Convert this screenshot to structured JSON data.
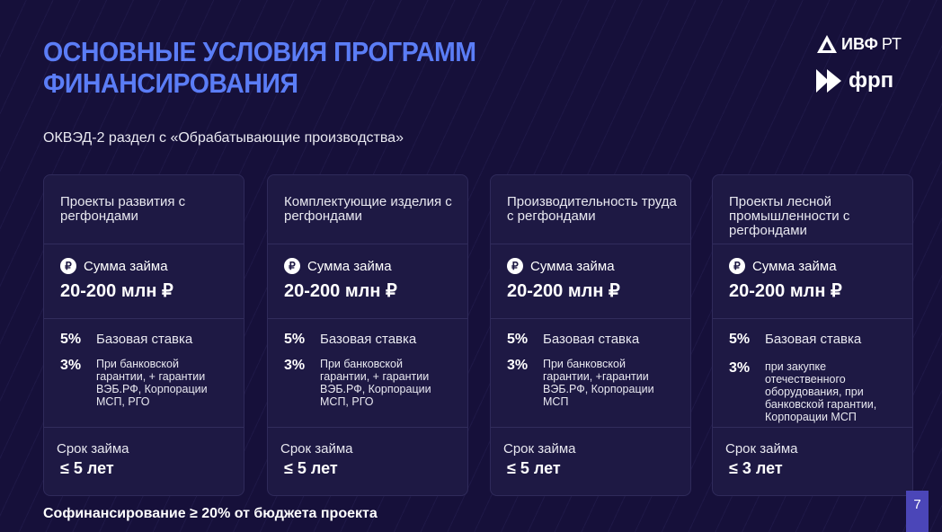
{
  "header": {
    "title_line1": "ОСНОВНЫЕ УСЛОВИЯ ПРОГРАММ",
    "title_line2": "ФИНАНСИРОВАНИЯ",
    "subtitle": "ОКВЭД-2 раздел с «Обрабатывающие производства»"
  },
  "logos": {
    "ivf": "ИВФ",
    "rt": "РТ",
    "frp": "фрп"
  },
  "colors": {
    "background": "#16103a",
    "accent": "#5b7df6",
    "card": "#1e1944",
    "page_badge": "#4b46b8"
  },
  "cards": [
    {
      "title": "Проекты развития с регфондами",
      "sum_label": "Сумма займа",
      "amount": "20-200 млн ₽",
      "base_pct": "5%",
      "base_label": "Базовая ставка",
      "low_pct": "3%",
      "low_label": "При банковской гарантии, + гарантии ВЭБ.РФ, Корпорации МСП, РГО",
      "term_label": "Срок займа",
      "term_value": "≤ 5 лет"
    },
    {
      "title": "Комплектующие изделия с регфондами",
      "sum_label": "Сумма займа",
      "amount": "20-200 млн ₽",
      "base_pct": "5%",
      "base_label": "Базовая ставка",
      "low_pct": "3%",
      "low_label": "При банковской гарантии, + гарантии ВЭБ.РФ, Корпорации МСП, РГО",
      "term_label": "Срок займа",
      "term_value": "≤ 5 лет"
    },
    {
      "title": "Производительность труда с регфондами",
      "sum_label": "Сумма займа",
      "amount": "20-200 млн ₽",
      "base_pct": "5%",
      "base_label": "Базовая ставка",
      "low_pct": "3%",
      "low_label": "При банковской гарантии, +гарантии ВЭБ.РФ, Корпорации МСП",
      "term_label": "Срок займа",
      "term_value": "≤ 5 лет"
    },
    {
      "title": "Проекты лесной промышленности с регфондами",
      "sum_label": "Сумма займа",
      "amount": "20-200 млн ₽",
      "base_pct": "5%",
      "base_label": "Базовая ставка",
      "low_pct": "3%",
      "low_label": "при закупке отечественного оборудования, при банковской гарантии, Корпорации МСП",
      "term_label": "Срок займа",
      "term_value": "≤ 3 лет"
    }
  ],
  "footer": {
    "note": "Софинансирование ≥ 20% от бюджета проекта",
    "page": "7"
  }
}
